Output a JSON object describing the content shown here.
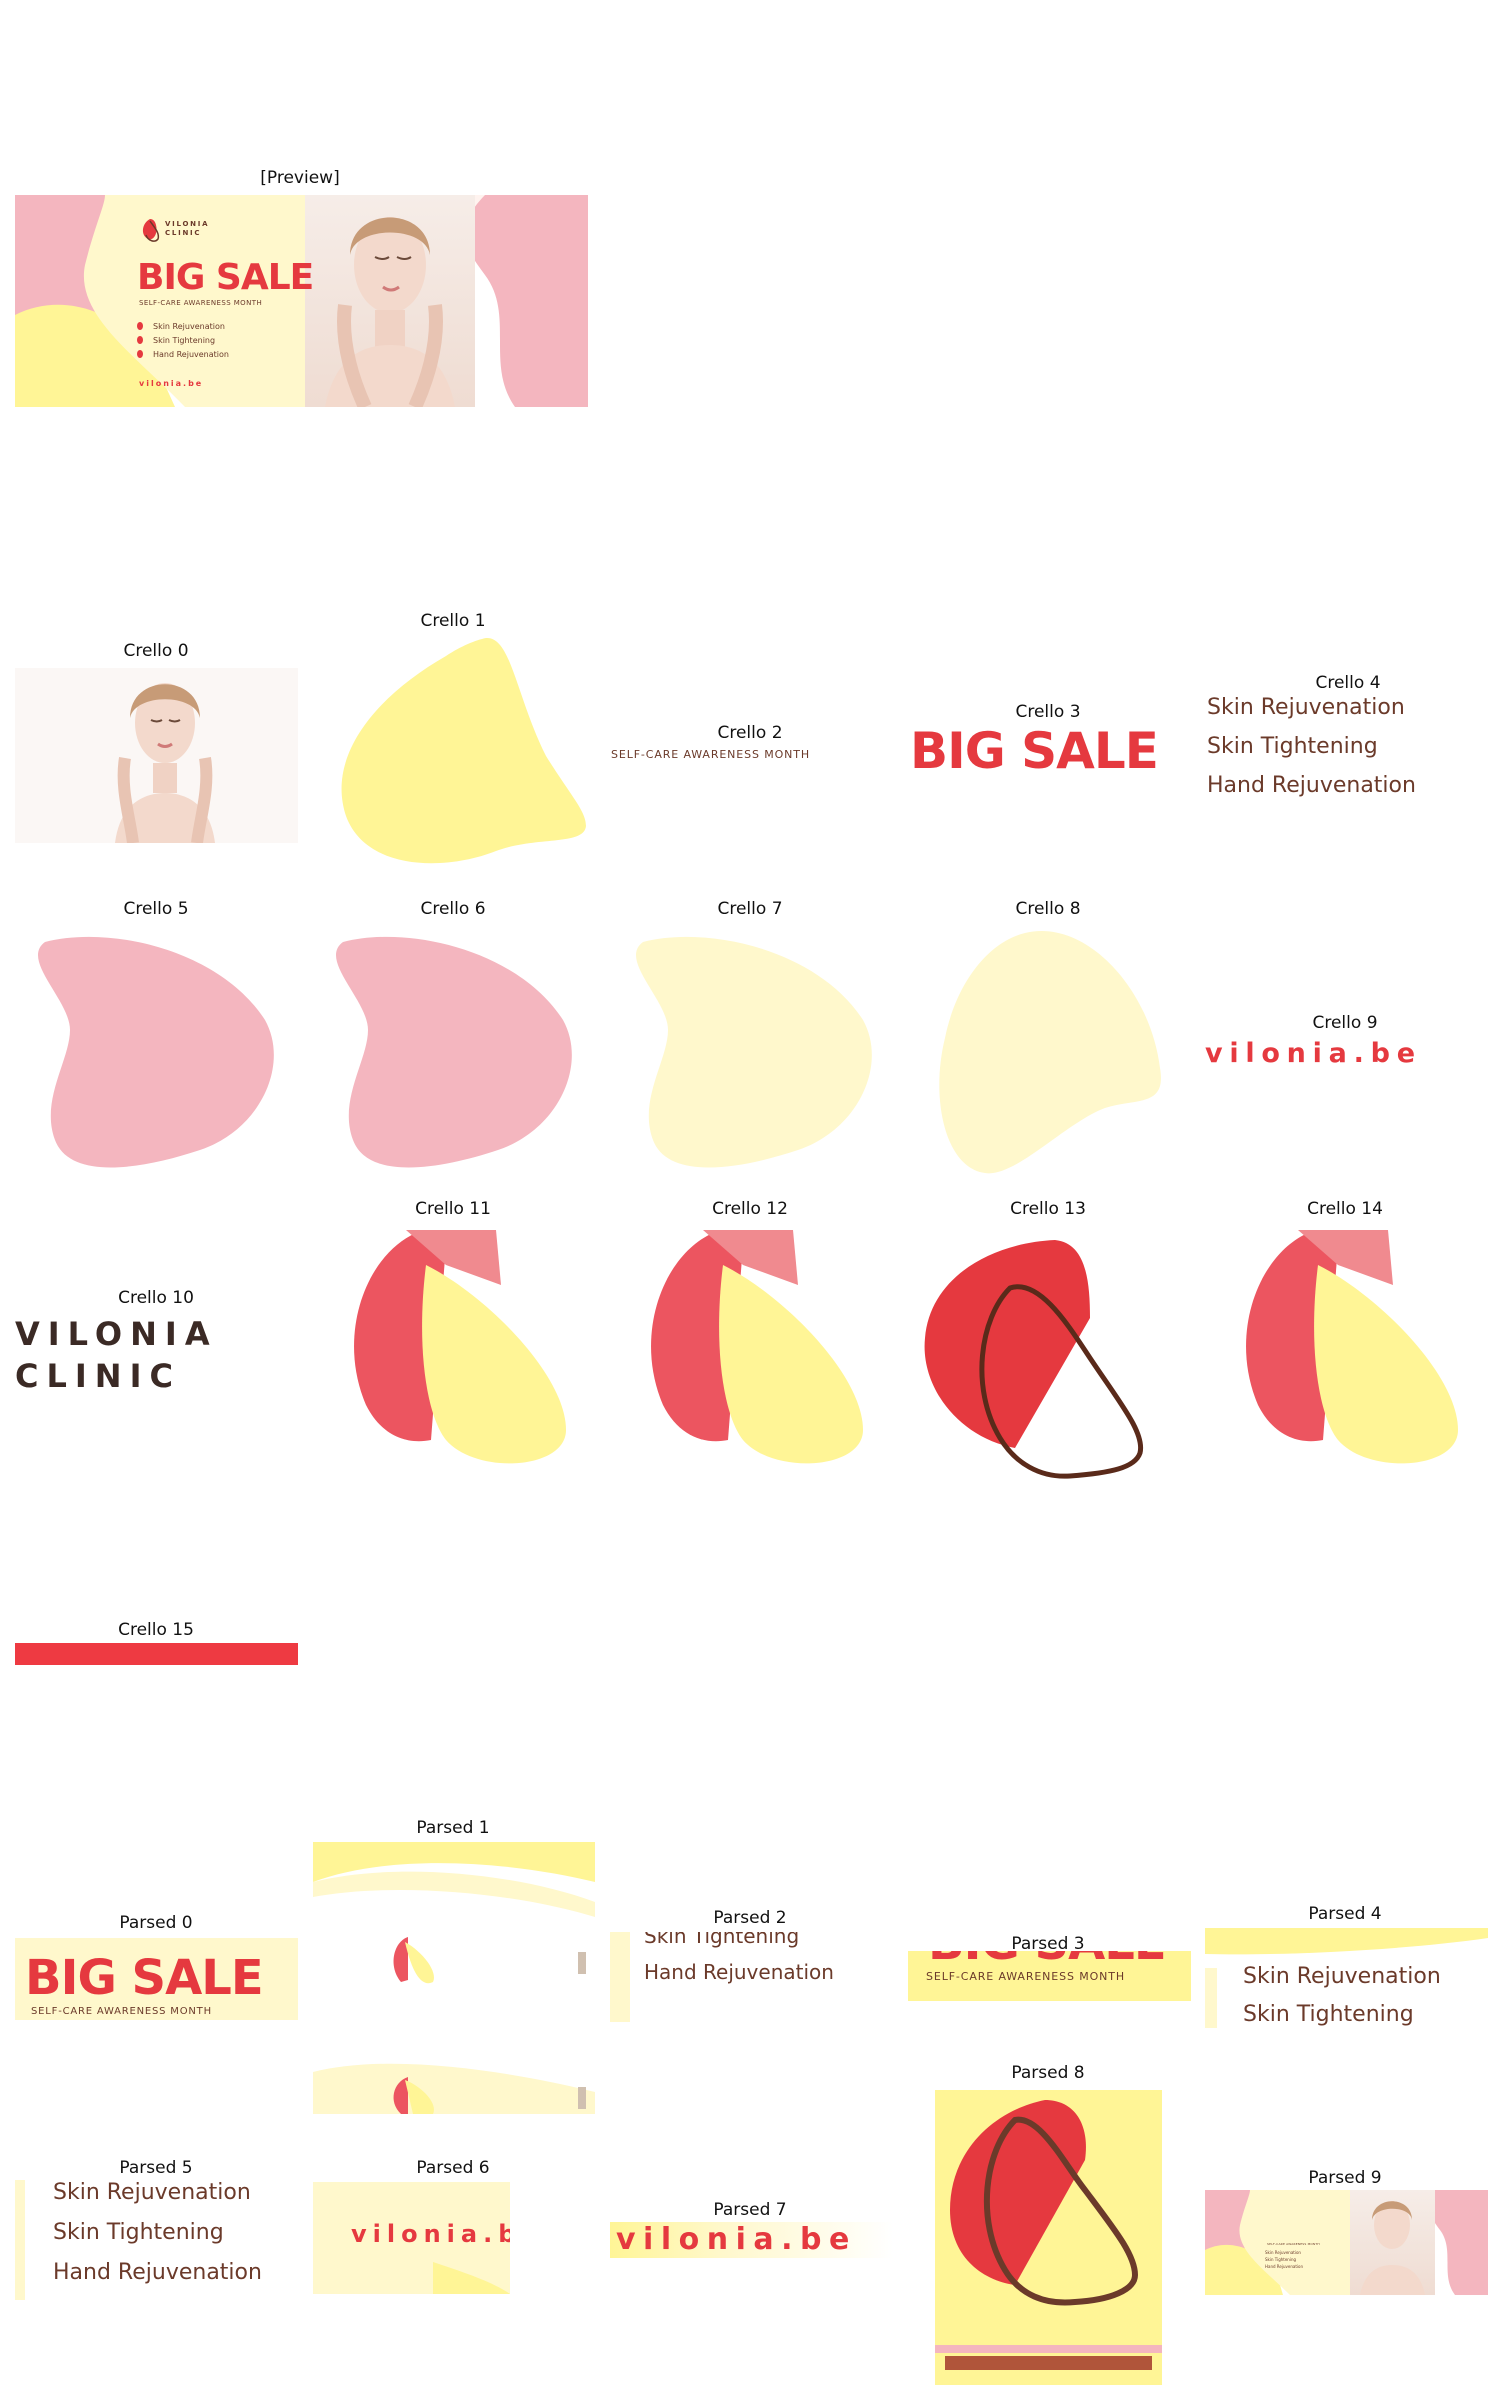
{
  "labels": {
    "preview": "[Preview]",
    "crello": [
      "Crello 0",
      "Crello 1",
      "Crello 2",
      "Crello 3",
      "Crello 4",
      "Crello 5",
      "Crello 6",
      "Crello 7",
      "Crello 8",
      "Crello 9",
      "Crello 10",
      "Crello 11",
      "Crello 12",
      "Crello 13",
      "Crello 14",
      "Crello 15"
    ],
    "parsed": [
      "Parsed 0",
      "Parsed 1",
      "Parsed 2",
      "Parsed 3",
      "Parsed 4",
      "Parsed 5",
      "Parsed 6",
      "Parsed 7",
      "Parsed 8",
      "Parsed 9"
    ]
  },
  "banner": {
    "brand_line1": "VILONIA",
    "brand_line2": "CLINIC",
    "headline": "BIG SALE",
    "subtitle": "SELF-CARE AWARENESS MONTH",
    "services": [
      "Skin Rejuvenation",
      "Skin Tightening",
      "Hand Rejuvenation"
    ],
    "website": "vilonia.be"
  },
  "parsed_text": {
    "p2_top": "Skin Tightening",
    "p2_bottom": "Hand Rejuvenation",
    "p3_top": "BIG SALE",
    "p3_sub": "SELF-CARE AWARENESS MONTH"
  },
  "colors": {
    "red": "#e5393f",
    "pink": "#f4b6bf",
    "yellow": "#fff596",
    "light_yellow": "#fff8cc",
    "brown": "#6b3a2a"
  }
}
